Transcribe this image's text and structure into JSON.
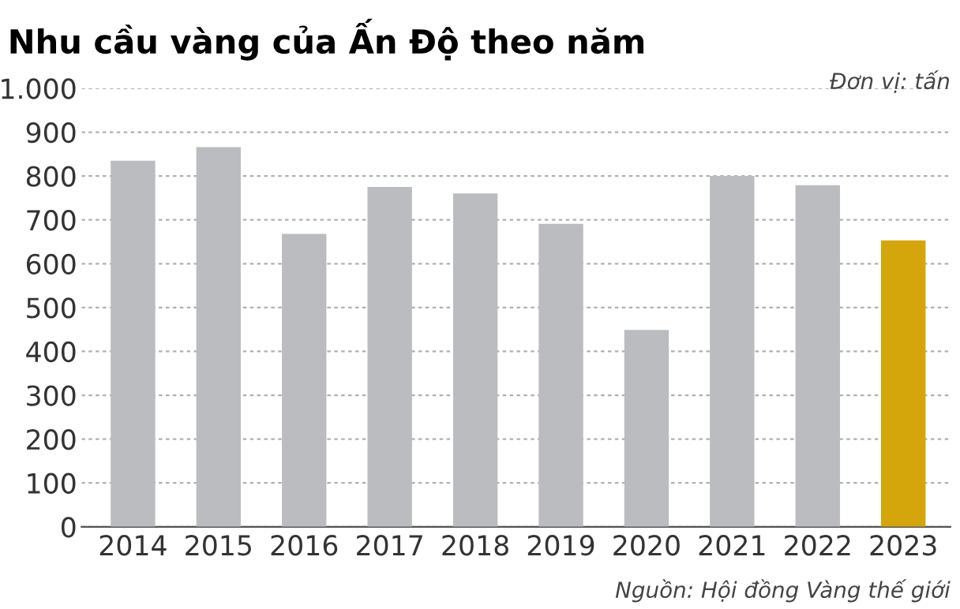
{
  "chart_data": {
    "type": "bar",
    "title": "Nhu cầu vàng của Ấn Độ theo năm",
    "subtitle": "Đơn vị: tấn",
    "categories": [
      "2014",
      "2015",
      "2016",
      "2017",
      "2018",
      "2019",
      "2020",
      "2021",
      "2022",
      "2023"
    ],
    "values": [
      835,
      866,
      668,
      775,
      760,
      691,
      449,
      800,
      779,
      653
    ],
    "colors": [
      "#bbbcc0",
      "#bbbcc0",
      "#bbbcc0",
      "#bbbcc0",
      "#bbbcc0",
      "#bbbcc0",
      "#bbbcc0",
      "#bbbcc0",
      "#bbbcc0",
      "#d4a60c"
    ],
    "ylim": [
      0,
      1000
    ],
    "yticks": [
      0,
      100,
      200,
      300,
      400,
      500,
      600,
      700,
      800,
      900,
      {
        "value": 1000,
        "label": "1.000"
      }
    ],
    "grid": "y",
    "annotations": [
      "Nguồn: Hội đồng Vàng thế giới"
    ]
  }
}
